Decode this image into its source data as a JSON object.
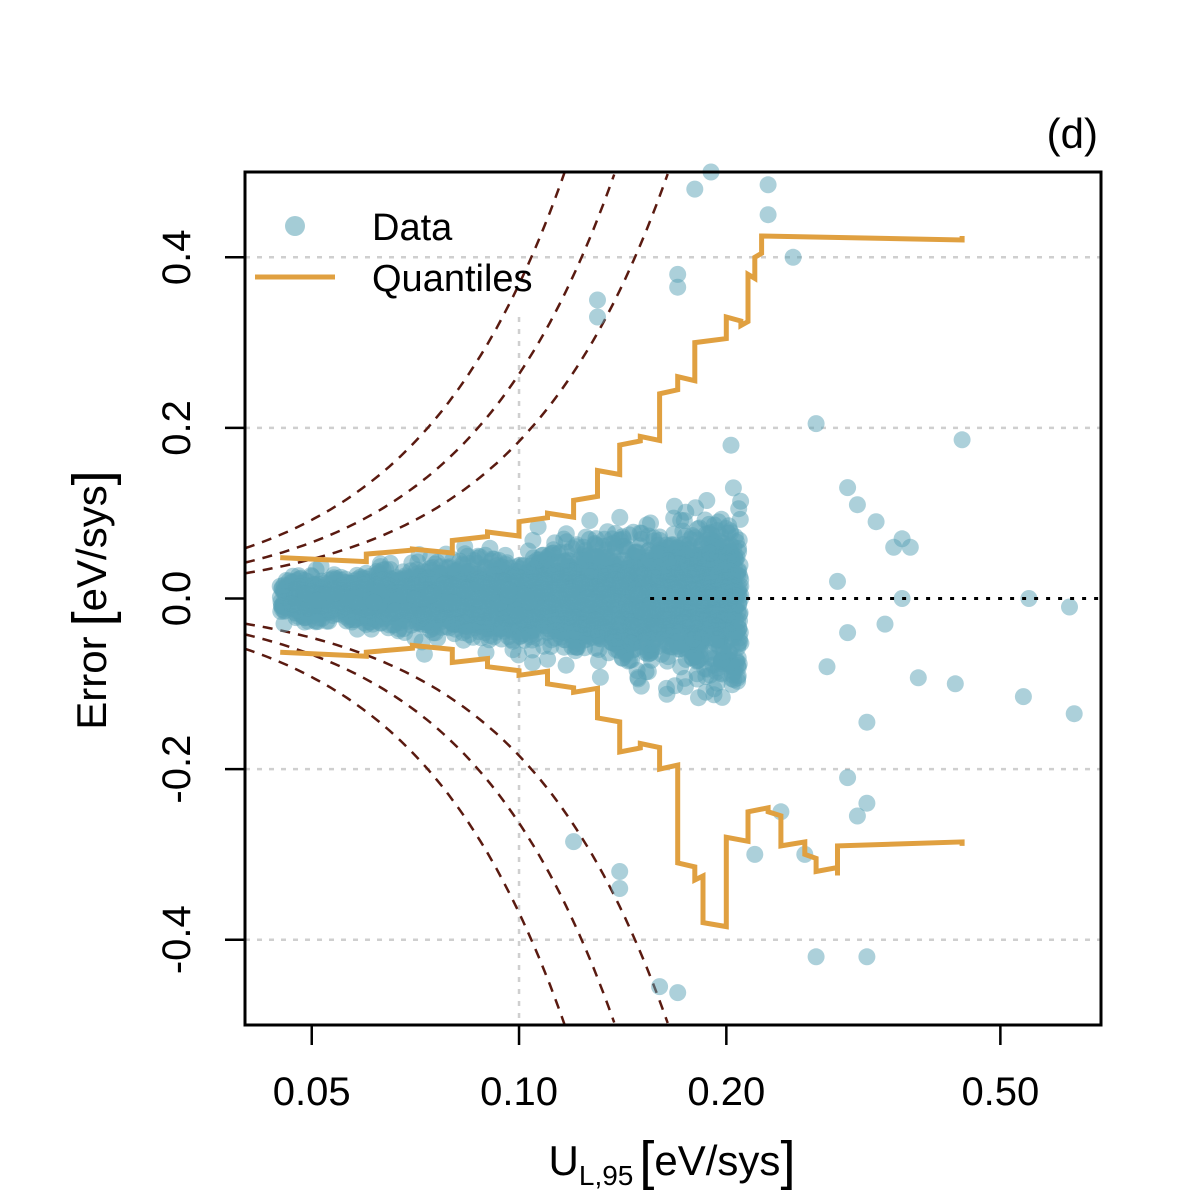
{
  "chart_data": {
    "type": "scatter",
    "panel_label": "(d)",
    "xlabel": "U",
    "xlabel_sub": "L,95",
    "xlabel_units": "eV/sys",
    "ylabel": "Error",
    "ylabel_units": "eV/sys",
    "x_scale": "log",
    "xlim": [
      0.04,
      0.7
    ],
    "ylim": [
      -0.5,
      0.5
    ],
    "x_ticks": [
      {
        "value": 0.05,
        "label": "0.05"
      },
      {
        "value": 0.1,
        "label": "0.10"
      },
      {
        "value": 0.2,
        "label": "0.20"
      },
      {
        "value": 0.5,
        "label": "0.50"
      }
    ],
    "y_ticks": [
      {
        "value": -0.4,
        "label": "-0.4"
      },
      {
        "value": -0.2,
        "label": "-0.2"
      },
      {
        "value": 0.0,
        "label": "0.0"
      },
      {
        "value": 0.2,
        "label": "0.2"
      },
      {
        "value": 0.4,
        "label": "0.4"
      }
    ],
    "grid": true,
    "zero_line": true,
    "legend": {
      "position": "top-left",
      "entries": [
        {
          "label": "Data",
          "kind": "point",
          "color": "#5aa2b5"
        },
        {
          "label": "Quantiles",
          "kind": "line",
          "color": "#e0a040"
        }
      ]
    },
    "colors": {
      "data": "#5aa2b5",
      "quantiles": "#e0a040",
      "reference": "#5a1a10"
    },
    "reference_curves": {
      "style": "dashed",
      "multipliers": [
        0.7,
        1.0,
        1.4
      ]
    },
    "generated_points": {
      "count": 4000,
      "seed": 7,
      "scale_factor": 0.38,
      "x_range": [
        0.045,
        0.21
      ]
    },
    "outlier_points": [
      [
        0.36,
        0.07
      ],
      [
        0.37,
        0.06
      ],
      [
        0.44,
        0.186
      ],
      [
        0.55,
        0.0
      ],
      [
        0.63,
        -0.01
      ],
      [
        0.54,
        -0.115
      ],
      [
        0.64,
        -0.135
      ],
      [
        0.43,
        -0.1
      ],
      [
        0.38,
        -0.093
      ],
      [
        0.32,
        -0.145
      ],
      [
        0.32,
        -0.24
      ],
      [
        0.27,
        -0.42
      ],
      [
        0.32,
        -0.42
      ],
      [
        0.31,
        -0.255
      ],
      [
        0.27,
        0.205
      ],
      [
        0.18,
        0.48
      ],
      [
        0.19,
        0.5
      ],
      [
        0.23,
        0.485
      ],
      [
        0.23,
        0.45
      ],
      [
        0.25,
        0.4
      ],
      [
        0.13,
        0.35
      ],
      [
        0.13,
        0.33
      ],
      [
        0.17,
        0.365
      ],
      [
        0.17,
        0.38
      ],
      [
        0.16,
        -0.455
      ],
      [
        0.17,
        -0.462
      ],
      [
        0.14,
        -0.32
      ],
      [
        0.14,
        -0.34
      ],
      [
        0.12,
        -0.285
      ],
      [
        0.22,
        -0.3
      ],
      [
        0.26,
        -0.3
      ],
      [
        0.24,
        -0.25
      ],
      [
        0.3,
        0.13
      ],
      [
        0.31,
        0.11
      ],
      [
        0.33,
        0.09
      ],
      [
        0.35,
        0.06
      ],
      [
        0.34,
        -0.03
      ],
      [
        0.3,
        -0.04
      ],
      [
        0.29,
        0.02
      ],
      [
        0.28,
        -0.08
      ],
      [
        0.36,
        0.0
      ],
      [
        0.3,
        -0.21
      ]
    ],
    "quantile_upper": [
      [
        0.045,
        0.048
      ],
      [
        0.06,
        0.052
      ],
      [
        0.07,
        0.058
      ],
      [
        0.08,
        0.068
      ],
      [
        0.09,
        0.078
      ],
      [
        0.1,
        0.09
      ],
      [
        0.11,
        0.1
      ],
      [
        0.12,
        0.115
      ],
      [
        0.13,
        0.15
      ],
      [
        0.14,
        0.18
      ],
      [
        0.15,
        0.19
      ],
      [
        0.16,
        0.24
      ],
      [
        0.17,
        0.26
      ],
      [
        0.18,
        0.3
      ],
      [
        0.2,
        0.33
      ],
      [
        0.21,
        0.32
      ],
      [
        0.215,
        0.38
      ],
      [
        0.22,
        0.4
      ],
      [
        0.225,
        0.425
      ],
      [
        0.44,
        0.425
      ]
    ],
    "quantile_lower": [
      [
        0.045,
        -0.063
      ],
      [
        0.06,
        -0.063
      ],
      [
        0.07,
        -0.055
      ],
      [
        0.08,
        -0.075
      ],
      [
        0.09,
        -0.08
      ],
      [
        0.1,
        -0.09
      ],
      [
        0.11,
        -0.1
      ],
      [
        0.12,
        -0.11
      ],
      [
        0.13,
        -0.14
      ],
      [
        0.14,
        -0.18
      ],
      [
        0.15,
        -0.17
      ],
      [
        0.16,
        -0.2
      ],
      [
        0.17,
        -0.31
      ],
      [
        0.18,
        -0.33
      ],
      [
        0.185,
        -0.38
      ],
      [
        0.2,
        -0.38
      ],
      [
        0.2,
        -0.28
      ],
      [
        0.215,
        -0.25
      ],
      [
        0.23,
        -0.25
      ],
      [
        0.24,
        -0.29
      ],
      [
        0.26,
        -0.3
      ],
      [
        0.27,
        -0.32
      ],
      [
        0.29,
        -0.32
      ],
      [
        0.29,
        -0.29
      ],
      [
        0.44,
        -0.29
      ]
    ]
  }
}
